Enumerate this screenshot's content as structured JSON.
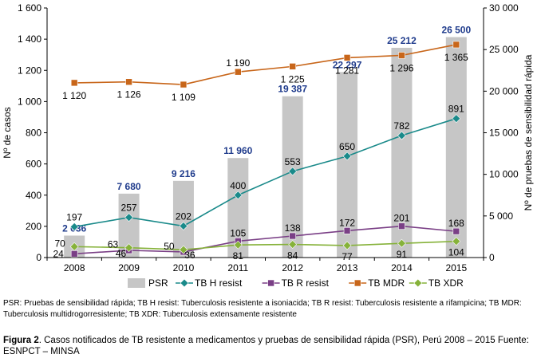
{
  "chart_data": {
    "type": "bar",
    "x": [
      "2008",
      "2009",
      "2010",
      "2011",
      "2012",
      "2013",
      "2014",
      "2015"
    ],
    "ylabel_left": "Nº de casos",
    "ylabel_right": "Nº de pruebas de sensibilidad rápida",
    "ylim_left": [
      0,
      1600
    ],
    "ylim_right": [
      0,
      30000
    ],
    "yticks_left": [
      "0",
      "200",
      "400",
      "600",
      "800",
      "1 000",
      "1 200",
      "1 400",
      "1 600"
    ],
    "yticks_right": [
      "0",
      "5 000",
      "10 000",
      "15 000",
      "20 000",
      "25 000",
      "30 000"
    ],
    "legend_position": "bottom",
    "grid": false,
    "bars": {
      "name": "PSR",
      "axis": "right",
      "color": "#c6c6c6",
      "values": [
        2636,
        7680,
        9216,
        11960,
        19387,
        22297,
        25212,
        26500
      ],
      "labels": [
        "2 636",
        "7 680",
        "9 216",
        "11 960",
        "19 387",
        "22 297",
        "25 212",
        "26 500"
      ],
      "label_color": "#1f3b8c"
    },
    "series": [
      {
        "name": "TB H resist",
        "color": "#1a8a8a",
        "marker": "diamond",
        "axis": "left",
        "values": [
          197,
          257,
          202,
          400,
          553,
          650,
          782,
          891
        ],
        "labels": [
          "197",
          "257",
          "202",
          "400",
          "553",
          "650",
          "782",
          "891"
        ]
      },
      {
        "name": "TB R resist",
        "color": "#7a3f86",
        "marker": "square",
        "axis": "left",
        "values": [
          24,
          46,
          36,
          105,
          138,
          172,
          201,
          168
        ],
        "labels": [
          "24",
          "46",
          "36",
          "105",
          "138",
          "172",
          "201",
          "168"
        ]
      },
      {
        "name": "TB MDR",
        "color": "#c8661a",
        "marker": "square",
        "axis": "left",
        "values": [
          1120,
          1126,
          1109,
          1190,
          1225,
          1281,
          1296,
          1365
        ],
        "labels": [
          "1 120",
          "1 126",
          "1 109",
          "1 190",
          "1 225",
          "1 281",
          "1 296",
          "1 365"
        ]
      },
      {
        "name": "TB XDR",
        "color": "#86b23a",
        "marker": "diamond",
        "axis": "left",
        "values": [
          70,
          63,
          50,
          81,
          84,
          77,
          91,
          104
        ],
        "labels": [
          "70",
          "63",
          "50",
          "81",
          "84",
          "77",
          "91",
          "104"
        ]
      }
    ]
  },
  "notes": {
    "abbreviations": "PSR: Pruebas de sensibilidad rápida; TB H resist: Tuberculosis resistente a isoniacida; TB R resist: Tuberculosis resistente a rifampicina; TB MDR: Tuberculosis multidrogorresistente; TB XDR: Tuberculosis extensamente resistente",
    "caption_label": "Figura 2",
    "caption_text": ". Casos notificados de TB resistente a medicamentos y pruebas de sensibilidad rápida (PSR), Perú 2008 – 2015 Fuente: ESNPCT – MINSA"
  }
}
